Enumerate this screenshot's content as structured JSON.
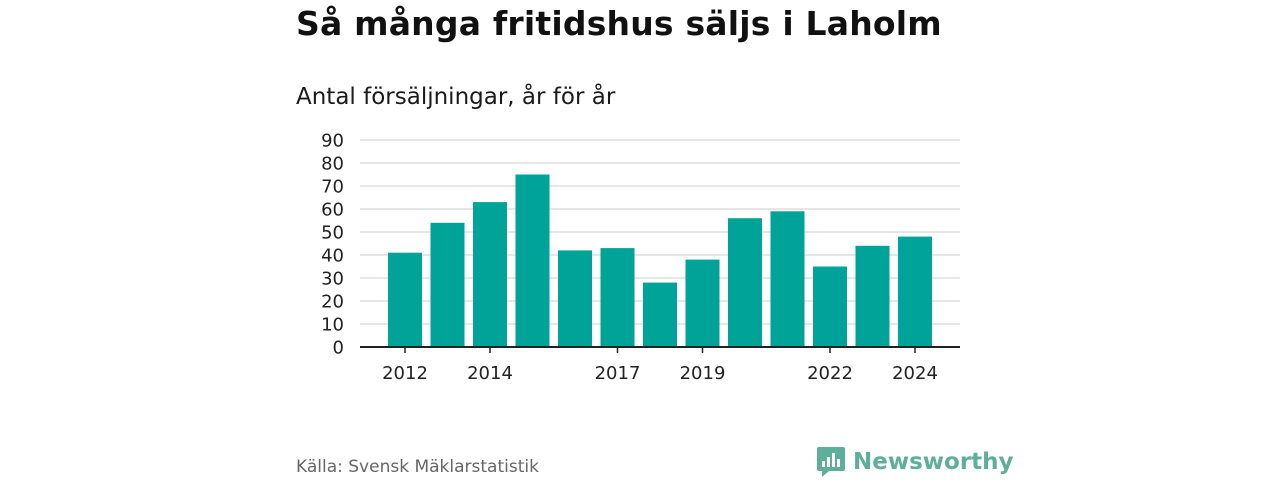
{
  "title": "Så många fritidshus säljs i Laholm",
  "subtitle": "Antal försäljningar, år för år",
  "source": "Källa: Svensk Mäklarstatistik",
  "brand": {
    "name": "Newsworthy",
    "icon": "bar-chart-speech-bubble-icon",
    "color": "#5fae9c"
  },
  "colors": {
    "bar": "#00a397",
    "grid": "#d6d6d6",
    "axis": "#222222"
  },
  "chart_data": {
    "type": "bar",
    "categories": [
      "2012",
      "2013",
      "2014",
      "2015",
      "2016",
      "2017",
      "2018",
      "2019",
      "2020",
      "2021",
      "2022",
      "2023",
      "2024"
    ],
    "x_tick_labels": [
      "2012",
      "2014",
      "2017",
      "2019",
      "2022",
      "2024"
    ],
    "values": [
      41,
      54,
      63,
      75,
      42,
      43,
      28,
      38,
      56,
      59,
      35,
      44,
      48
    ],
    "y_ticks": [
      0,
      10,
      20,
      30,
      40,
      50,
      60,
      70,
      80,
      90
    ],
    "ylim": [
      0,
      90
    ],
    "grid": true,
    "xlabel": "",
    "ylabel": ""
  }
}
